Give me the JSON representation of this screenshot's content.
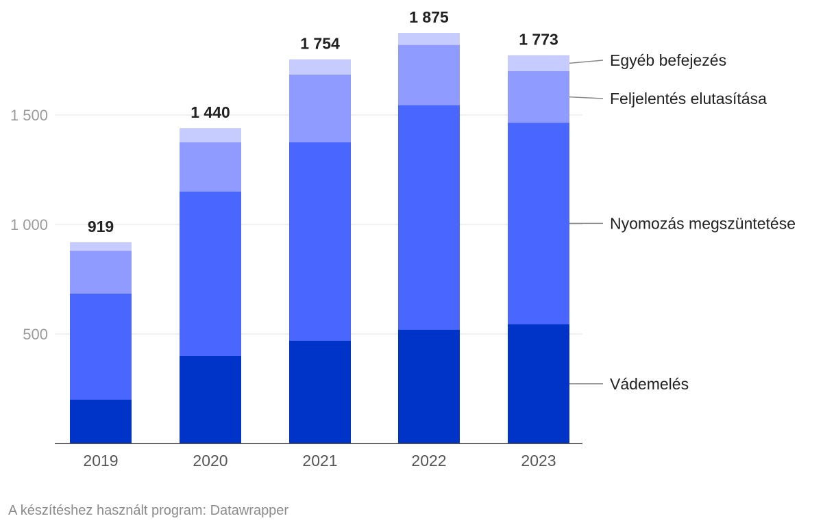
{
  "chart_data": {
    "type": "bar",
    "stacked": true,
    "categories": [
      "2019",
      "2020",
      "2021",
      "2022",
      "2023"
    ],
    "series": [
      {
        "name": "Vádemelés",
        "color": "#0033c7",
        "values": [
          200,
          400,
          470,
          520,
          545
        ]
      },
      {
        "name": "Nyomozás megszüntetése",
        "color": "#4966ff",
        "values": [
          485,
          750,
          905,
          1025,
          920
        ]
      },
      {
        "name": "Feljelentés elutasítása",
        "color": "#8f9bff",
        "values": [
          195,
          225,
          310,
          275,
          235
        ]
      },
      {
        "name": "Egyéb befejezés",
        "color": "#c7ccff",
        "values": [
          39,
          65,
          69,
          55,
          73
        ]
      }
    ],
    "totals": [
      919,
      1440,
      1754,
      1875,
      1773
    ],
    "total_labels": [
      "919",
      "1 440",
      "1 754",
      "1 875",
      "1 773"
    ],
    "yticks": [
      {
        "value": 500,
        "label": "500"
      },
      {
        "value": 1000,
        "label": "1 000"
      },
      {
        "value": 1500,
        "label": "1 500"
      }
    ],
    "ylim": [
      0,
      1875
    ],
    "grid": true,
    "legend": "right, labels at end of last bar",
    "title": "",
    "xlabel": "",
    "ylabel": ""
  },
  "footer": {
    "credit": "A készítéshez használt program: Datawrapper"
  }
}
